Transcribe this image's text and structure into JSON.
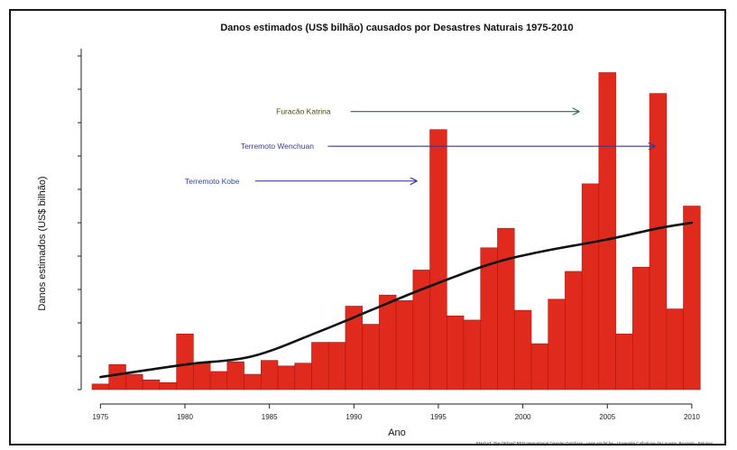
{
  "chart_data": {
    "type": "bar",
    "title": "Danos estimados (US$ bilhão) causados por Desastres Naturais 1975-2010",
    "xlabel": "Ano",
    "ylabel": "Danos estimados (US$ bilhão)",
    "x": [
      1975,
      1976,
      1977,
      1978,
      1979,
      1980,
      1981,
      1982,
      1983,
      1984,
      1985,
      1986,
      1987,
      1988,
      1989,
      1990,
      1991,
      1992,
      1993,
      1994,
      1995,
      1996,
      1997,
      1998,
      1999,
      2000,
      2001,
      2002,
      2003,
      2004,
      2005,
      2006,
      2007,
      2008,
      2009,
      2010
    ],
    "values": [
      4,
      18,
      11,
      7,
      5,
      40,
      19,
      13,
      20,
      11,
      21,
      17,
      19,
      34,
      34,
      60,
      47,
      68,
      64,
      86,
      187,
      53,
      50,
      102,
      116,
      57,
      33,
      65,
      85,
      148,
      228,
      40,
      88,
      213,
      58,
      132
    ],
    "trend": {
      "x": [
        1975,
        1980,
        1984,
        1988,
        1991,
        1994,
        1998,
        2001,
        2005,
        2008,
        2010
      ],
      "y": [
        9,
        18,
        24,
        42,
        57,
        72,
        90,
        99,
        108,
        116,
        120
      ]
    },
    "xticks": [
      1975,
      1980,
      1985,
      1990,
      1995,
      2000,
      2005,
      2010
    ],
    "xlim": [
      1974.5,
      2010.7
    ],
    "ylim": [
      0,
      240
    ],
    "grid": false,
    "colors": {
      "bars": "#e02a1e",
      "bar_edge": "#b3150d",
      "trend": "#111111"
    },
    "annotations": [
      {
        "text": "Furacão Katrina",
        "y": 200,
        "x_text": 1985.4,
        "x_arrow_end": 2003.3,
        "color": "#4a4a12",
        "arrow_color": "#1e6a52"
      },
      {
        "text": "Terremoto Wenchuan",
        "y": 175,
        "x_text": 1983.3,
        "x_arrow_end": 2007.8,
        "color": "#3a3a8a",
        "arrow_color": "#3a3a8a"
      },
      {
        "text": "Terremoto Kobe",
        "y": 150,
        "x_text": 1980.0,
        "x_arrow_end": 1993.7,
        "color": "#2a4aa8",
        "arrow_color": "#2a2a90"
      }
    ],
    "source": "EM-DAT: The OFDA/CRED International Disaster Database - www.emdat.be - Université Catholique de Louvain, Brussels - Belgium"
  }
}
